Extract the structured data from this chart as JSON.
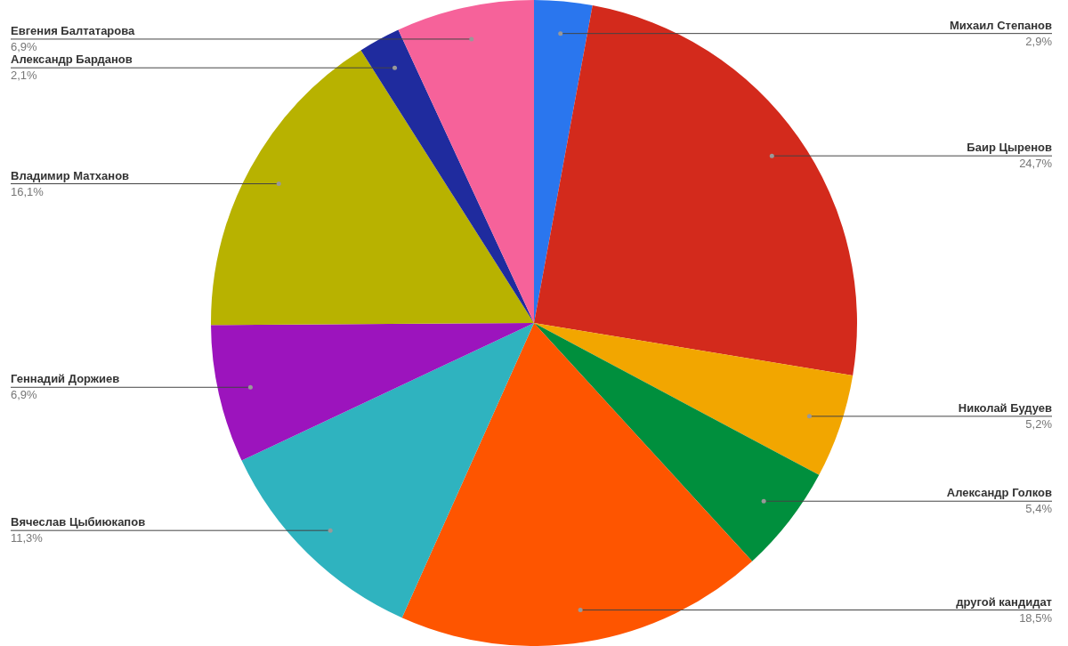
{
  "chart_data": {
    "type": "pie",
    "categories": [
      "Михаил Степанов",
      "Баир Цыренов",
      "Николай Будуев",
      "Александр Голков",
      "другой кандидат",
      "Вячеслав Цыбиюкапов",
      "Геннадий Доржиев",
      "Владимир Матханов",
      "Александр Барданов",
      "Евгения Балтатарова"
    ],
    "values": [
      2.9,
      24.7,
      5.2,
      5.4,
      18.5,
      11.3,
      6.9,
      16.1,
      2.1,
      6.9
    ],
    "value_labels": [
      "2,9%",
      "24,7%",
      "5,2%",
      "5,4%",
      "18,5%",
      "11,3%",
      "6,9%",
      "16,1%",
      "2,1%",
      "6,9%"
    ],
    "colors": [
      "#2a76ee",
      "#d32a1c",
      "#f2a600",
      "#008f3d",
      "#fe5500",
      "#2fb3bf",
      "#9c14bd",
      "#b8b200",
      "#1f2b9e",
      "#f6629a"
    ],
    "legend": false
  }
}
